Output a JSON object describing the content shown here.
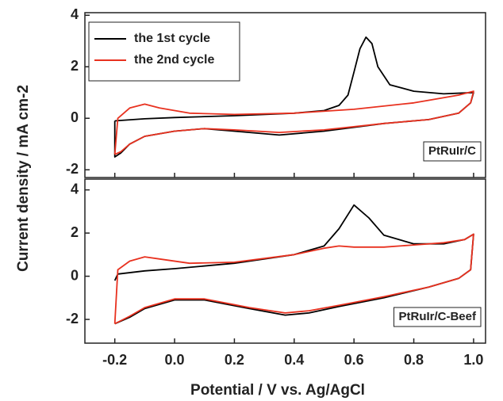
{
  "chart_data": [
    {
      "type": "line",
      "annotation": "PtRuIr/C",
      "y_label": "Current density / mA cm-2",
      "xlim": [
        -0.3,
        1.04
      ],
      "ylim": [
        -2.3,
        4.1
      ],
      "yticks": [
        -2,
        0,
        2,
        4
      ],
      "legend": "upper left",
      "series": [
        {
          "name": "the 1st cycle",
          "color": "#000000",
          "x": [
            -0.2,
            -0.1,
            0.0,
            0.2,
            0.4,
            0.5,
            0.55,
            0.58,
            0.6,
            0.62,
            0.64,
            0.66,
            0.68,
            0.72,
            0.8,
            0.9,
            1.0,
            0.99,
            0.95,
            0.85,
            0.7,
            0.5,
            0.35,
            0.2,
            0.1,
            0.0,
            -0.1,
            -0.15,
            -0.18,
            -0.2,
            -0.2
          ],
          "values": [
            -0.1,
            -0.02,
            0.03,
            0.1,
            0.2,
            0.3,
            0.5,
            0.9,
            1.8,
            2.7,
            3.15,
            2.9,
            2.0,
            1.3,
            1.05,
            0.95,
            1.0,
            0.6,
            0.2,
            -0.05,
            -0.2,
            -0.5,
            -0.65,
            -0.5,
            -0.4,
            -0.5,
            -0.7,
            -1.0,
            -1.35,
            -1.5,
            -0.1
          ]
        },
        {
          "name": "the 2nd cycle",
          "color": "#e8311f",
          "x": [
            -0.2,
            -0.19,
            -0.15,
            -0.1,
            -0.05,
            0.05,
            0.2,
            0.4,
            0.6,
            0.8,
            0.95,
            1.0,
            0.99,
            0.95,
            0.85,
            0.7,
            0.5,
            0.35,
            0.2,
            0.1,
            0.0,
            -0.1,
            -0.15,
            -0.18,
            -0.2
          ],
          "values": [
            -1.4,
            0.0,
            0.4,
            0.55,
            0.4,
            0.2,
            0.15,
            0.2,
            0.35,
            0.6,
            0.9,
            1.05,
            0.6,
            0.2,
            -0.05,
            -0.2,
            -0.45,
            -0.55,
            -0.45,
            -0.4,
            -0.5,
            -0.7,
            -1.0,
            -1.3,
            -1.4
          ]
        }
      ]
    },
    {
      "type": "line",
      "annotation": "PtRuIr/C-Beef",
      "x_label": "Potential / V vs. Ag/AgCl",
      "xlim": [
        -0.3,
        1.04
      ],
      "ylim": [
        -3.1,
        4.5
      ],
      "yticks": [
        -2,
        0,
        2,
        4
      ],
      "xticks": [
        -0.2,
        {
          "value": 0,
          "label": "0.0"
        },
        0.2,
        0.4,
        0.6,
        0.8,
        {
          "value": 1,
          "label": "1.0"
        }
      ],
      "series": [
        {
          "color": "#000000",
          "x": [
            -0.2,
            -0.19,
            -0.1,
            0.0,
            0.2,
            0.4,
            0.5,
            0.55,
            0.6,
            0.65,
            0.7,
            0.8,
            0.9,
            0.97,
            1.0,
            0.99,
            0.95,
            0.85,
            0.7,
            0.55,
            0.45,
            0.37,
            0.25,
            0.1,
            0.0,
            -0.1,
            -0.15,
            -0.2
          ],
          "values": [
            -0.2,
            0.1,
            0.25,
            0.35,
            0.6,
            1.0,
            1.4,
            2.2,
            3.3,
            2.7,
            1.9,
            1.5,
            1.5,
            1.7,
            1.95,
            0.3,
            -0.1,
            -0.5,
            -1.0,
            -1.4,
            -1.7,
            -1.8,
            -1.5,
            -1.1,
            -1.1,
            -1.5,
            -1.9,
            -2.2
          ]
        },
        {
          "color": "#e8311f",
          "x": [
            -0.2,
            -0.19,
            -0.15,
            -0.1,
            -0.05,
            0.05,
            0.2,
            0.4,
            0.5,
            0.55,
            0.6,
            0.7,
            0.8,
            0.9,
            0.97,
            1.0,
            0.99,
            0.95,
            0.85,
            0.7,
            0.55,
            0.45,
            0.37,
            0.25,
            0.1,
            0.0,
            -0.1,
            -0.15,
            -0.2
          ],
          "values": [
            -2.2,
            0.3,
            0.7,
            0.9,
            0.8,
            0.6,
            0.65,
            1.0,
            1.3,
            1.4,
            1.35,
            1.35,
            1.45,
            1.55,
            1.7,
            1.95,
            0.3,
            -0.1,
            -0.5,
            -0.95,
            -1.35,
            -1.6,
            -1.7,
            -1.45,
            -1.05,
            -1.05,
            -1.45,
            -1.85,
            -2.2
          ]
        }
      ]
    }
  ]
}
